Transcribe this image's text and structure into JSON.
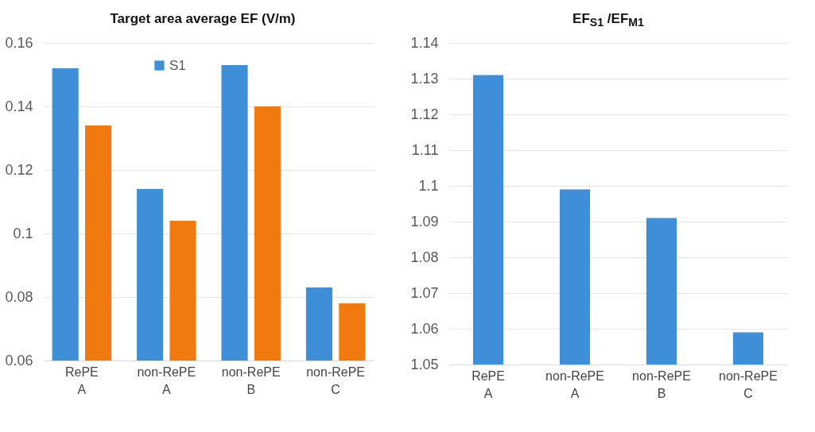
{
  "chart_data": [
    {
      "type": "bar",
      "title": "Target area average EF (V/m)",
      "categories": [
        "RePE\nA",
        "non-RePE\nA",
        "non-RePE\nB",
        "non-RePE\nC"
      ],
      "series": [
        {
          "name": "S1",
          "color": "#3f8fd8",
          "values": [
            0.152,
            0.114,
            0.153,
            0.083
          ]
        },
        {
          "color": "#f07a10",
          "values": [
            0.134,
            0.104,
            0.14,
            0.078
          ]
        }
      ],
      "ylim": [
        0.06,
        0.16
      ],
      "yticks": [
        0.06,
        0.08,
        0.1,
        0.12,
        0.14,
        0.16
      ],
      "grid": "y",
      "legend": "top"
    },
    {
      "type": "bar",
      "title": "EF$_{S1}$ /EF$_{M1}$",
      "categories": [
        "RePE\nA",
        "non-RePE\nA",
        "non-RePE\nB",
        "non-RePE\nC"
      ],
      "series": [
        {
          "color": "#3f8fd8",
          "values": [
            1.131,
            1.099,
            1.091,
            1.059
          ]
        }
      ],
      "ylim": [
        1.05,
        1.14
      ],
      "yticks": [
        1.05,
        1.06,
        1.07,
        1.08,
        1.09,
        1.1,
        1.11,
        1.12,
        1.13,
        1.14
      ],
      "grid": "y"
    }
  ]
}
